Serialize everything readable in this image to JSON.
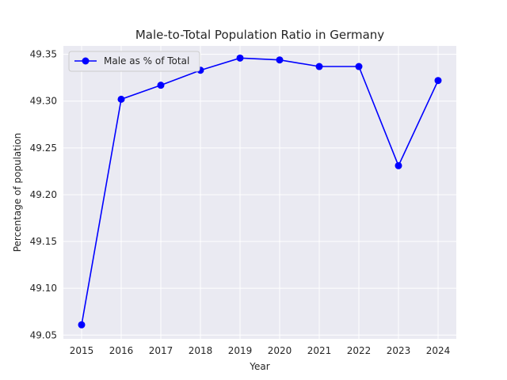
{
  "chart_data": {
    "type": "line",
    "title": "Male-to-Total Population Ratio in Germany",
    "xlabel": "Year",
    "ylabel": "Percentage of population",
    "x": [
      2015,
      2016,
      2017,
      2018,
      2019,
      2020,
      2021,
      2022,
      2023,
      2024
    ],
    "x_ticks": [
      "2015",
      "2016",
      "2017",
      "2018",
      "2019",
      "2020",
      "2021",
      "2022",
      "2023",
      "2024"
    ],
    "y_ticks": [
      "49.05",
      "49.10",
      "49.15",
      "49.20",
      "49.25",
      "49.30",
      "49.35"
    ],
    "ylim": [
      49.046,
      49.359
    ],
    "series": [
      {
        "name": "Male as % of Total",
        "color": "#0000ff",
        "marker": "circle",
        "values": [
          49.061,
          49.302,
          49.317,
          49.333,
          49.346,
          49.344,
          49.337,
          49.337,
          49.231,
          49.322
        ]
      }
    ],
    "grid": true,
    "legend_position": "top-left",
    "background_color": "#eaeaf2",
    "grid_color": "#ffffff"
  }
}
